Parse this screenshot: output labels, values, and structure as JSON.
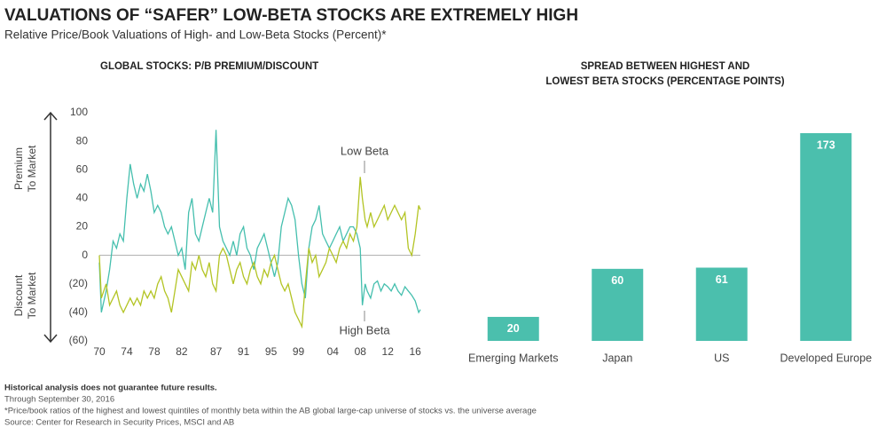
{
  "header": {
    "title": "VALUATIONS OF “SAFER” LOW-BETA STOCKS ARE EXTREMELY HIGH",
    "subtitle": "Relative Price/Book Valuations of High- and Low-Beta Stocks (Percent)*"
  },
  "chart_data": [
    {
      "type": "line",
      "title": "GLOBAL STOCKS: P/B PREMIUM/DISCOUNT",
      "side_labels": [
        "Premium",
        "To Market",
        "Discount",
        "To Market"
      ],
      "annotations": [
        "Low Beta",
        "High Beta"
      ],
      "x": [
        1970,
        1970.3,
        1971,
        1971.5,
        1972,
        1972.5,
        1973,
        1973.5,
        1974,
        1974.5,
        1975,
        1975.5,
        1976,
        1976.5,
        1977,
        1977.5,
        1978,
        1978.5,
        1979,
        1979.5,
        1980,
        1980.5,
        1981,
        1981.5,
        1982,
        1982.5,
        1983,
        1983.5,
        1984,
        1984.5,
        1985,
        1985.5,
        1986,
        1986.5,
        1987,
        1987.5,
        1988,
        1988.5,
        1989,
        1989.5,
        1990,
        1990.5,
        1991,
        1991.5,
        1992,
        1992.5,
        1993,
        1993.5,
        1994,
        1994.5,
        1995,
        1995.5,
        1996,
        1996.5,
        1997,
        1997.5,
        1998,
        1998.5,
        1999,
        1999.5,
        2000,
        2000.5,
        2001,
        2001.5,
        2002,
        2002.5,
        2003,
        2003.5,
        2004,
        2004.5,
        2005,
        2005.5,
        2006,
        2006.5,
        2007,
        2007.5,
        2008,
        2008.3,
        2008.7,
        2009,
        2009.5,
        2010,
        2010.5,
        2011,
        2011.5,
        2012,
        2012.5,
        2013,
        2013.5,
        2014,
        2014.5,
        2015,
        2015.5,
        2016,
        2016.5,
        2016.75
      ],
      "series": [
        {
          "name": "High Beta",
          "color": "#45bfae",
          "values": [
            -5,
            -40,
            -25,
            -10,
            10,
            5,
            15,
            10,
            40,
            64,
            50,
            40,
            50,
            45,
            57,
            45,
            30,
            35,
            30,
            20,
            15,
            20,
            10,
            0,
            5,
            -10,
            30,
            40,
            15,
            10,
            20,
            30,
            40,
            30,
            88,
            20,
            10,
            5,
            0,
            10,
            0,
            15,
            20,
            5,
            0,
            -10,
            5,
            10,
            15,
            5,
            -5,
            -15,
            -5,
            20,
            30,
            40,
            35,
            25,
            0,
            -20,
            -30,
            5,
            20,
            25,
            35,
            15,
            10,
            5,
            10,
            15,
            20,
            10,
            15,
            20,
            20,
            15,
            5,
            -35,
            -20,
            -25,
            -30,
            -20,
            -18,
            -25,
            -20,
            -22,
            -25,
            -20,
            -25,
            -28,
            -22,
            -25,
            -28,
            -32,
            -40,
            -38
          ]
        },
        {
          "name": "Low Beta",
          "color": "#b3c424",
          "values": [
            0,
            -30,
            -20,
            -35,
            -30,
            -25,
            -35,
            -40,
            -35,
            -30,
            -35,
            -30,
            -35,
            -25,
            -30,
            -25,
            -30,
            -20,
            -15,
            -25,
            -30,
            -40,
            -25,
            -10,
            -15,
            -20,
            -25,
            -5,
            -10,
            0,
            -10,
            -15,
            -5,
            -20,
            -25,
            0,
            5,
            0,
            -10,
            -20,
            -10,
            -5,
            -15,
            -20,
            -10,
            -5,
            -15,
            -20,
            -10,
            -15,
            -5,
            0,
            -10,
            -20,
            -25,
            -20,
            -30,
            -40,
            -45,
            -50,
            -20,
            5,
            -5,
            0,
            -15,
            -10,
            -5,
            5,
            0,
            -5,
            5,
            10,
            5,
            15,
            10,
            20,
            55,
            40,
            25,
            20,
            30,
            20,
            25,
            30,
            35,
            25,
            30,
            35,
            30,
            25,
            30,
            5,
            0,
            15,
            35,
            32
          ]
        }
      ],
      "xlim": [
        1970,
        2016.75
      ],
      "xticks": [
        {
          "value": 1970,
          "label": "70"
        },
        {
          "value": 1974,
          "label": "74"
        },
        {
          "value": 1978,
          "label": "78"
        },
        {
          "value": 1982,
          "label": "82"
        },
        {
          "value": 1987,
          "label": "87"
        },
        {
          "value": 1991,
          "label": "91"
        },
        {
          "value": 1995,
          "label": "95"
        },
        {
          "value": 1999,
          "label": "99"
        },
        {
          "value": 2004,
          "label": "04"
        },
        {
          "value": 2008,
          "label": "08"
        },
        {
          "value": 2012,
          "label": "12"
        },
        {
          "value": 2016,
          "label": "16"
        }
      ],
      "ylim": [
        -60,
        100
      ],
      "yticks": [
        100,
        80,
        60,
        40,
        20,
        0,
        {
          "value": -20,
          "label": "(20)"
        },
        {
          "value": -40,
          "label": "(40)"
        },
        {
          "value": -60,
          "label": "(60)"
        }
      ]
    },
    {
      "type": "bar",
      "title": [
        "SPREAD BETWEEN HIGHEST AND",
        "LOWEST BETA STOCKS (PERCENTAGE POINTS)"
      ],
      "categories": [
        "Emerging Markets",
        "Japan",
        "US",
        "Developed Europe"
      ],
      "values": [
        20,
        60,
        61,
        173
      ],
      "color": "#4bbfad"
    }
  ],
  "footnotes": [
    "Historical analysis does not guarantee future results.",
    "Through September 30, 2016",
    "*Price/book ratios of the highest and lowest quintiles of monthly beta within the AB global large-cap universe of stocks vs. the universe average",
    "Source: Center for Research in Security Prices, MSCI and AB"
  ]
}
